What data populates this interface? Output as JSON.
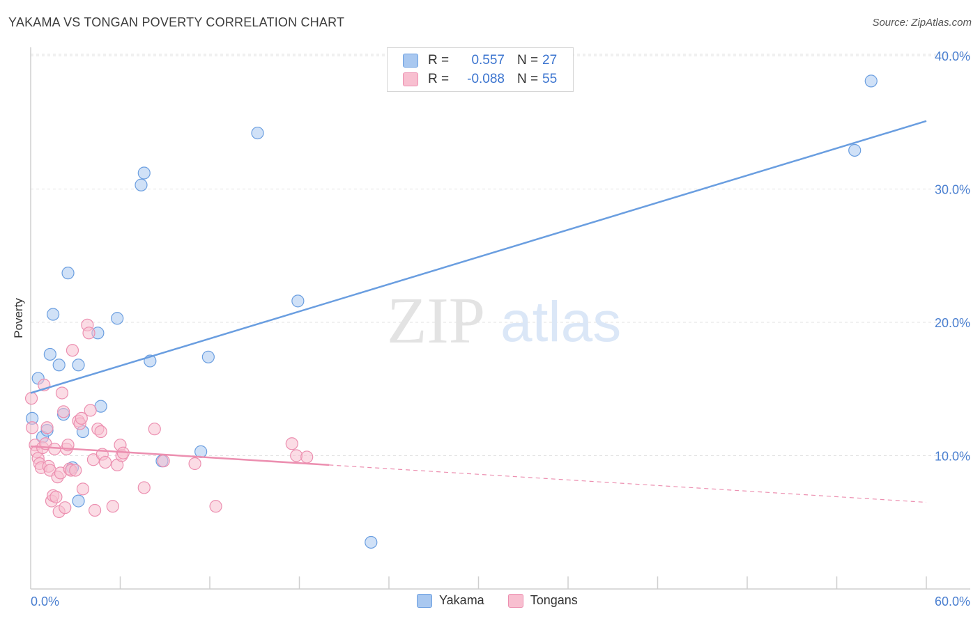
{
  "title": "YAKAMA VS TONGAN POVERTY CORRELATION CHART",
  "source": "Source: ZipAtlas.com",
  "watermark": {
    "zip": "ZIP",
    "atlas": "atlas"
  },
  "legend": {
    "rows": [
      {
        "r_label": "R =",
        "r_value": "0.557",
        "n_label": "N =",
        "n_value": "27",
        "color": "#a9c8f0",
        "stroke": "#6a9ee0"
      },
      {
        "r_label": "R =",
        "r_value": "-0.088",
        "n_label": "N =",
        "n_value": "55",
        "color": "#f8bfd0",
        "stroke": "#ec8fb0"
      }
    ],
    "bottom": [
      {
        "label": "Yakama",
        "color": "#a9c8f0",
        "stroke": "#6a9ee0"
      },
      {
        "label": "Tongans",
        "color": "#f8bfd0",
        "stroke": "#ec8fb0"
      }
    ]
  },
  "chart_data": {
    "type": "scatter",
    "title": "YAKAMA VS TONGAN POVERTY CORRELATION CHART",
    "xlabel": "",
    "ylabel": "Poverty",
    "xlim": [
      0,
      60
    ],
    "ylim": [
      0,
      42
    ],
    "x_tick_labels": [
      "0.0%",
      "60.0%"
    ],
    "y_ticks": [
      10,
      20,
      30,
      40
    ],
    "y_tick_labels": [
      "10.0%",
      "20.0%",
      "30.0%",
      "40.0%"
    ],
    "legend_position": "top-center",
    "series": [
      {
        "name": "Yakama",
        "color": "#6a9ee0",
        "fill": "#a9c8f0",
        "trend": {
          "x0": 0,
          "y0": 14.7,
          "x1": 60,
          "y1": 35.1,
          "dashed_from": null
        },
        "points": [
          [
            0.1,
            12.8
          ],
          [
            0.5,
            15.8
          ],
          [
            0.8,
            11.4
          ],
          [
            1.1,
            11.9
          ],
          [
            1.3,
            17.6
          ],
          [
            1.5,
            20.6
          ],
          [
            1.9,
            16.8
          ],
          [
            2.2,
            13.1
          ],
          [
            2.5,
            23.7
          ],
          [
            2.8,
            9.1
          ],
          [
            3.2,
            16.8
          ],
          [
            3.2,
            6.6
          ],
          [
            3.5,
            11.8
          ],
          [
            4.5,
            19.2
          ],
          [
            4.7,
            13.7
          ],
          [
            5.8,
            20.3
          ],
          [
            7.4,
            30.3
          ],
          [
            7.6,
            31.2
          ],
          [
            8.0,
            17.1
          ],
          [
            8.8,
            9.6
          ],
          [
            11.4,
            10.3
          ],
          [
            11.9,
            17.4
          ],
          [
            15.2,
            34.2
          ],
          [
            17.9,
            21.6
          ],
          [
            22.8,
            3.5
          ],
          [
            55.2,
            32.9
          ],
          [
            56.3,
            38.1
          ]
        ]
      },
      {
        "name": "Tongans",
        "color": "#ec8fb0",
        "fill": "#f8bfd0",
        "trend": {
          "x0": 0,
          "y0": 10.7,
          "x1": 60,
          "y1": 6.5,
          "dashed_from": 20
        },
        "points": [
          [
            0.05,
            14.3
          ],
          [
            0.1,
            12.1
          ],
          [
            0.3,
            10.8
          ],
          [
            0.4,
            10.3
          ],
          [
            0.5,
            9.8
          ],
          [
            0.6,
            9.4
          ],
          [
            0.7,
            9.1
          ],
          [
            0.8,
            10.6
          ],
          [
            0.9,
            15.3
          ],
          [
            1.0,
            10.9
          ],
          [
            1.1,
            12.1
          ],
          [
            1.2,
            9.2
          ],
          [
            1.3,
            8.9
          ],
          [
            1.4,
            6.6
          ],
          [
            1.5,
            7.0
          ],
          [
            1.6,
            10.5
          ],
          [
            1.7,
            6.9
          ],
          [
            1.8,
            8.4
          ],
          [
            1.9,
            5.8
          ],
          [
            2.0,
            8.7
          ],
          [
            2.1,
            14.7
          ],
          [
            2.2,
            13.3
          ],
          [
            2.3,
            6.1
          ],
          [
            2.4,
            10.5
          ],
          [
            2.5,
            10.8
          ],
          [
            2.6,
            9.0
          ],
          [
            2.7,
            8.9
          ],
          [
            2.8,
            17.9
          ],
          [
            3.0,
            8.9
          ],
          [
            3.2,
            12.6
          ],
          [
            3.3,
            12.4
          ],
          [
            3.4,
            12.8
          ],
          [
            3.5,
            7.5
          ],
          [
            3.8,
            19.8
          ],
          [
            3.9,
            19.2
          ],
          [
            4.0,
            13.4
          ],
          [
            4.2,
            9.7
          ],
          [
            4.3,
            5.9
          ],
          [
            4.5,
            12.0
          ],
          [
            4.7,
            11.8
          ],
          [
            4.8,
            10.1
          ],
          [
            5.0,
            9.5
          ],
          [
            5.5,
            6.2
          ],
          [
            5.8,
            9.3
          ],
          [
            6.0,
            10.8
          ],
          [
            6.1,
            10.0
          ],
          [
            6.2,
            10.2
          ],
          [
            7.6,
            7.6
          ],
          [
            8.3,
            12.0
          ],
          [
            8.9,
            9.6
          ],
          [
            11.0,
            9.4
          ],
          [
            12.4,
            6.2
          ],
          [
            17.5,
            10.9
          ],
          [
            17.8,
            10.0
          ],
          [
            18.5,
            9.9
          ]
        ]
      }
    ]
  }
}
